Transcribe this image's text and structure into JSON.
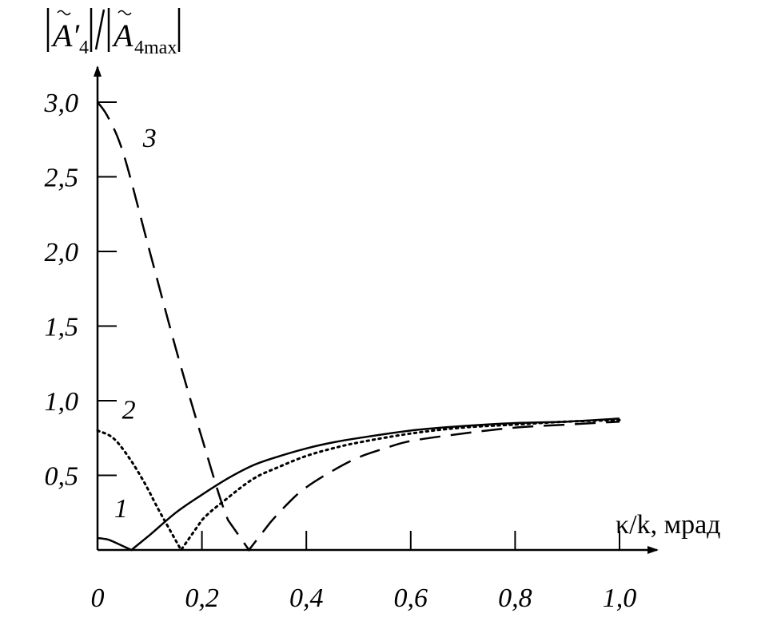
{
  "chart_data": {
    "type": "line",
    "title": "",
    "xlabel": "κ/k, мрад",
    "ylabel": "|Ã′4|/|Ã4max|",
    "xlim": [
      0,
      1.0
    ],
    "ylim": [
      0,
      3.0
    ],
    "x_ticks": [
      0,
      0.2,
      0.4,
      0.6,
      0.8,
      1.0
    ],
    "x_tick_labels": [
      "0",
      "0,2",
      "0,4",
      "0,6",
      "0,8",
      "1,0"
    ],
    "y_ticks": [
      0.5,
      1.0,
      1.5,
      2.0,
      2.5,
      3.0
    ],
    "y_tick_labels": [
      "0,5",
      "1,0",
      "1,5",
      "2,0",
      "2,5",
      "3,0"
    ],
    "grid": false,
    "legend": "none",
    "series": [
      {
        "name": "1",
        "style": "solid",
        "x": [
          0,
          0.02,
          0.04,
          0.065,
          0.1,
          0.15,
          0.2,
          0.25,
          0.3,
          0.35,
          0.4,
          0.45,
          0.5,
          0.6,
          0.7,
          0.8,
          0.9,
          1.0
        ],
        "y": [
          0.08,
          0.07,
          0.04,
          0.0,
          0.1,
          0.25,
          0.37,
          0.48,
          0.57,
          0.63,
          0.68,
          0.72,
          0.75,
          0.8,
          0.83,
          0.85,
          0.86,
          0.88
        ]
      },
      {
        "name": "2",
        "style": "dotted",
        "x": [
          0,
          0.03,
          0.06,
          0.09,
          0.12,
          0.16,
          0.2,
          0.25,
          0.3,
          0.35,
          0.4,
          0.45,
          0.5,
          0.6,
          0.7,
          0.8,
          0.9,
          1.0
        ],
        "y": [
          0.8,
          0.75,
          0.62,
          0.45,
          0.25,
          0.0,
          0.2,
          0.35,
          0.48,
          0.56,
          0.63,
          0.68,
          0.72,
          0.78,
          0.82,
          0.84,
          0.86,
          0.87
        ]
      },
      {
        "name": "3",
        "style": "dashed",
        "x": [
          0,
          0.02,
          0.05,
          0.1,
          0.15,
          0.2,
          0.25,
          0.29,
          0.33,
          0.37,
          0.4,
          0.45,
          0.5,
          0.55,
          0.6,
          0.7,
          0.8,
          0.9,
          1.0
        ],
        "y": [
          3.0,
          2.9,
          2.65,
          2.0,
          1.35,
          0.75,
          0.2,
          0.0,
          0.18,
          0.33,
          0.42,
          0.53,
          0.62,
          0.68,
          0.73,
          0.78,
          0.82,
          0.84,
          0.86
        ]
      }
    ],
    "curve_labels": [
      {
        "text": "1",
        "x": 0.045,
        "y": 0.22
      },
      {
        "text": "2",
        "x": 0.06,
        "y": 0.88
      },
      {
        "text": "3",
        "x": 0.1,
        "y": 2.7
      }
    ]
  }
}
